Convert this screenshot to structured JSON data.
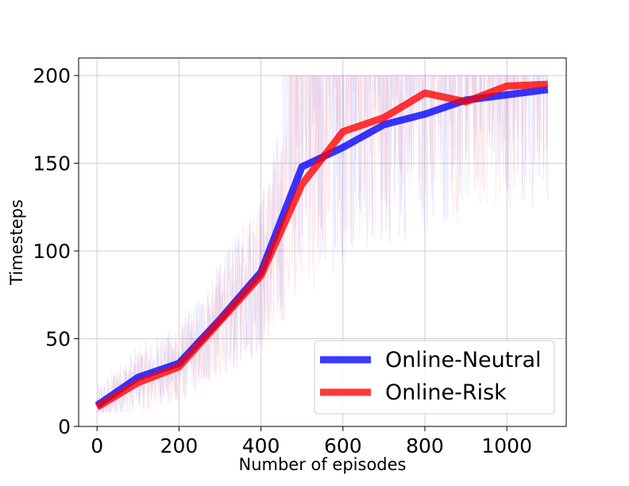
{
  "chart_data": {
    "type": "line",
    "title": "",
    "xlabel": "Number of episodes",
    "ylabel": "Timesteps",
    "xlim": [
      -45,
      1145
    ],
    "ylim": [
      0,
      210
    ],
    "xticks": [
      0,
      200,
      400,
      600,
      800,
      1000
    ],
    "yticks": [
      0,
      50,
      100,
      150,
      200
    ],
    "grid": true,
    "legend_position": "lower right",
    "series": [
      {
        "name": "Online-Neutral",
        "color": "#0000ff",
        "x": [
          0,
          100,
          200,
          300,
          400,
          500,
          600,
          700,
          800,
          900,
          1000,
          1100
        ],
        "values": [
          12,
          28,
          36,
          61,
          88,
          148,
          159,
          172,
          178,
          186,
          189,
          192
        ]
      },
      {
        "name": "Online-Risk",
        "color": "#ff0000",
        "x": [
          0,
          100,
          200,
          300,
          400,
          500,
          600,
          700,
          800,
          900,
          1000,
          1100
        ],
        "values": [
          11,
          25,
          34,
          60,
          86,
          138,
          168,
          176,
          190,
          185,
          194,
          195
        ]
      }
    ],
    "raw_noise": {
      "description_color_blue": "#0000ff",
      "description_color_red": "#ff0000"
    }
  }
}
